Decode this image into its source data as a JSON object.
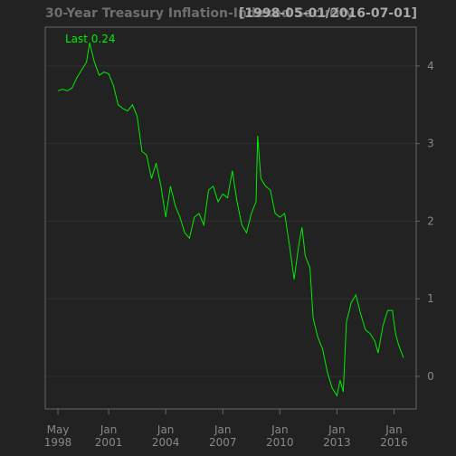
{
  "chart_data": {
    "type": "line",
    "title": "30-Year Treasury Inflation-Indexed Security",
    "subtitle": "[1998-05-01/2016-07-01]",
    "annotation": "Last 0.24",
    "x": [
      "1998-05",
      "1998-08",
      "1998-11",
      "1999-02",
      "1999-05",
      "1999-08",
      "1999-11",
      "2000-01",
      "2000-04",
      "2000-07",
      "2000-10",
      "2001-01",
      "2001-04",
      "2001-07",
      "2001-10",
      "2002-01",
      "2002-04",
      "2002-07",
      "2002-10",
      "2003-01",
      "2003-04",
      "2003-07",
      "2003-10",
      "2004-01",
      "2004-04",
      "2004-07",
      "2004-10",
      "2005-01",
      "2005-04",
      "2005-07",
      "2005-10",
      "2006-01",
      "2006-04",
      "2006-07",
      "2006-10",
      "2007-01",
      "2007-04",
      "2007-07",
      "2007-10",
      "2008-01",
      "2008-04",
      "2008-07",
      "2008-10",
      "2008-11",
      "2009-01",
      "2009-04",
      "2009-07",
      "2009-10",
      "2010-01",
      "2010-04",
      "2010-07",
      "2010-10",
      "2011-01",
      "2011-03",
      "2011-05",
      "2011-08",
      "2011-10",
      "2012-01",
      "2012-04",
      "2012-07",
      "2012-10",
      "2013-01",
      "2013-03",
      "2013-05",
      "2013-07",
      "2013-10",
      "2014-01",
      "2014-04",
      "2014-07",
      "2014-10",
      "2015-01",
      "2015-03",
      "2015-06",
      "2015-09",
      "2015-12",
      "2016-02",
      "2016-04",
      "2016-07"
    ],
    "series": [
      {
        "name": "30-Year Treasury Inflation-Indexed Security",
        "color": "#00ee00",
        "values": [
          3.68,
          3.7,
          3.68,
          3.72,
          3.85,
          3.95,
          4.05,
          4.3,
          4.05,
          3.88,
          3.92,
          3.9,
          3.75,
          3.5,
          3.45,
          3.42,
          3.5,
          3.35,
          2.9,
          2.85,
          2.55,
          2.75,
          2.45,
          2.05,
          2.45,
          2.2,
          2.05,
          1.85,
          1.78,
          2.05,
          2.1,
          1.95,
          2.4,
          2.45,
          2.25,
          2.35,
          2.3,
          2.65,
          2.25,
          1.95,
          1.85,
          2.1,
          2.25,
          3.1,
          2.55,
          2.45,
          2.4,
          2.1,
          2.05,
          2.1,
          1.7,
          1.25,
          1.7,
          1.92,
          1.55,
          1.4,
          0.75,
          0.5,
          0.35,
          0.05,
          -0.15,
          -0.25,
          -0.05,
          -0.2,
          0.7,
          0.95,
          1.05,
          0.8,
          0.6,
          0.55,
          0.45,
          0.3,
          0.65,
          0.85,
          0.85,
          0.55,
          0.4,
          0.24
        ]
      }
    ],
    "xlim": [
      "1997-09",
      "2017-03"
    ],
    "xticks": [
      {
        "value": "1998-05",
        "label": "May 1998"
      },
      {
        "value": "2001-01",
        "label": "Jan 2001"
      },
      {
        "value": "2004-01",
        "label": "Jan 2004"
      },
      {
        "value": "2007-01",
        "label": "Jan 2007"
      },
      {
        "value": "2010-01",
        "label": "Jan 2010"
      },
      {
        "value": "2013-01",
        "label": "Jan 2013"
      },
      {
        "value": "2016-01",
        "label": "Jan 2016"
      }
    ],
    "ylim": [
      -0.42,
      4.5
    ],
    "yticks": [
      0,
      1,
      2,
      3,
      4
    ],
    "grid": true
  }
}
